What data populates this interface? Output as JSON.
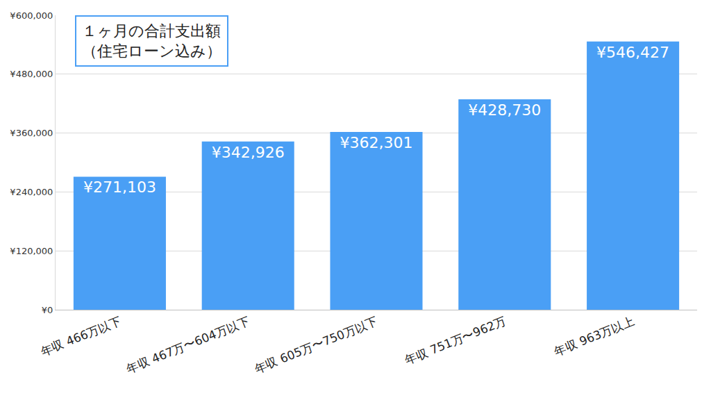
{
  "chart_data": {
    "type": "bar",
    "title": "１ヶ月の合計支出額",
    "subtitle": "（住宅ローン込み）",
    "categories": [
      "年収 466万以下",
      "年収 467万〜604万以下",
      "年収 605万〜750万以下",
      "年収 751万〜962万",
      "年収 963万以上"
    ],
    "values": [
      271103,
      342926,
      362301,
      428730,
      546427
    ],
    "value_labels": [
      "¥271,103",
      "¥342,926",
      "¥362,301",
      "¥428,730",
      "¥546,427"
    ],
    "data_labels": true,
    "color": "#4a9ff5",
    "ylim": [
      0,
      600000
    ],
    "yticks": [
      {
        "value": 0,
        "label": "¥0"
      },
      {
        "value": 120000,
        "label": "¥120,000"
      },
      {
        "value": 240000,
        "label": "¥240,000"
      },
      {
        "value": 360000,
        "label": "¥360,000"
      },
      {
        "value": 480000,
        "label": "¥480,000"
      },
      {
        "value": 600000,
        "label": "¥600,000"
      }
    ],
    "grid": true
  }
}
